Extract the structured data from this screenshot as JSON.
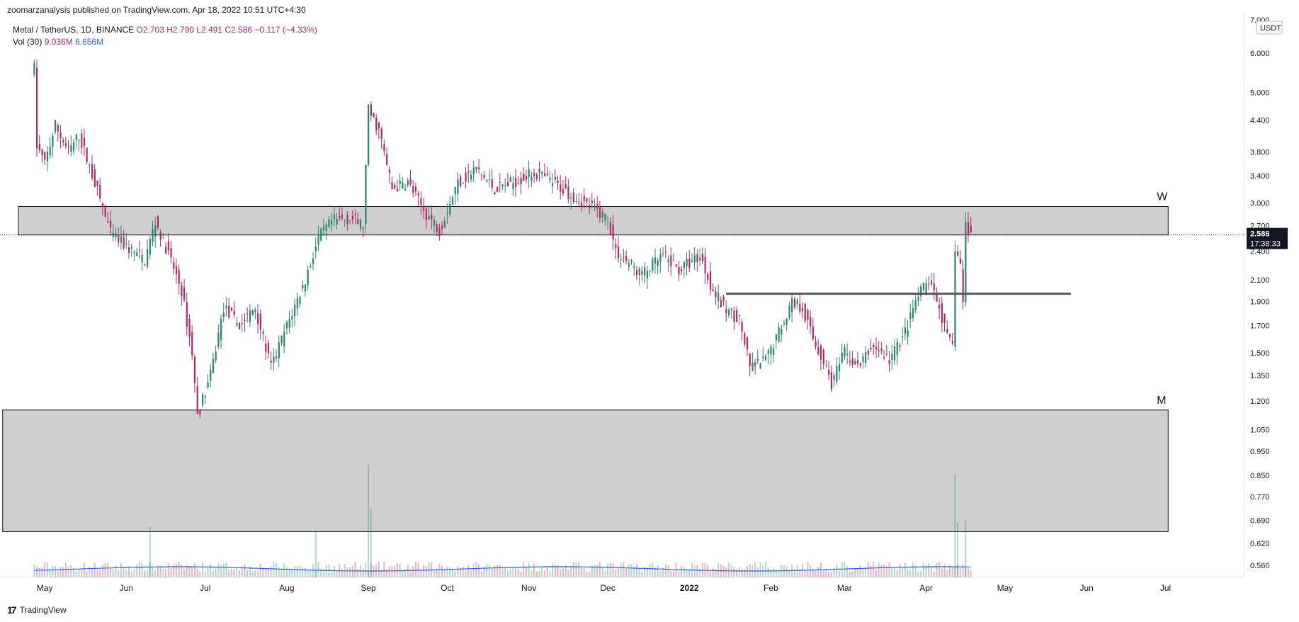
{
  "header": {
    "text": "zoomarzanalysis published on TradingView.com, Apr 18, 2022 10:51 UTC+4:30"
  },
  "legend": {
    "symbol": "Metal / TetherUS, 1D, BINANCE",
    "open": "O2.703",
    "high": "H2.790",
    "low": "L2.491",
    "close": "C2.586",
    "change": "−0.117 (−4.33%)",
    "vol_label": "Vol (30)",
    "vol_value": "9.036M",
    "vol_ma": "6.656M"
  },
  "footer": {
    "logo": "17",
    "brand": "TradingView"
  },
  "colors": {
    "up": "#26866b",
    "down": "#b22865",
    "zone_fill": "#cccccc",
    "vol_ma": "#2962ff",
    "last_price_bg": "#131722"
  },
  "chart_data": {
    "type": "candlestick",
    "currency_label": "USDT",
    "y_scale": "log",
    "ylim": [
      0.53,
      7.0
    ],
    "y_ticks": [
      "7.000",
      "6.000",
      "5.000",
      "4.400",
      "3.800",
      "3.400",
      "3.000",
      "2.700",
      "2.400",
      "2.100",
      "1.900",
      "1.700",
      "1.500",
      "1.350",
      "1.200",
      "1.050",
      "0.950",
      "0.850",
      "0.770",
      "0.690",
      "0.620",
      "0.560"
    ],
    "x_ticks": [
      "May",
      "Jun",
      "Jul",
      "Aug",
      "Sep",
      "Oct",
      "Nov",
      "Dec",
      "2022",
      "Feb",
      "Mar",
      "Apr",
      "May",
      "Jun",
      "Jul"
    ],
    "last_price": {
      "value": "2.586",
      "countdown": "17:38:33"
    },
    "zones": [
      {
        "label": "W",
        "from": 2.586,
        "to": 2.95
      },
      {
        "label": "M",
        "from": 0.655,
        "to": 1.15
      }
    ],
    "support_line": {
      "value": 1.97,
      "from": "2022-01-15",
      "to": "2022-05-26"
    },
    "price_path": [
      [
        "2021-04-27",
        5.6
      ],
      [
        "2021-04-28",
        3.9
      ],
      [
        "2021-05-01",
        3.6
      ],
      [
        "2021-05-05",
        4.3
      ],
      [
        "2021-05-10",
        3.8
      ],
      [
        "2021-05-14",
        4.1
      ],
      [
        "2021-05-20",
        3.3
      ],
      [
        "2021-05-26",
        2.6
      ],
      [
        "2021-06-01",
        2.45
      ],
      [
        "2021-06-08",
        2.3
      ],
      [
        "2021-06-12",
        2.75
      ],
      [
        "2021-06-16",
        2.45
      ],
      [
        "2021-06-22",
        2.0
      ],
      [
        "2021-06-26",
        1.5
      ],
      [
        "2021-06-28",
        1.12
      ],
      [
        "2021-07-03",
        1.35
      ],
      [
        "2021-07-08",
        1.85
      ],
      [
        "2021-07-14",
        1.7
      ],
      [
        "2021-07-20",
        1.85
      ],
      [
        "2021-07-26",
        1.4
      ],
      [
        "2021-08-02",
        1.75
      ],
      [
        "2021-08-08",
        2.1
      ],
      [
        "2021-08-13",
        2.55
      ],
      [
        "2021-08-18",
        2.75
      ],
      [
        "2021-08-25",
        2.8
      ],
      [
        "2021-08-30",
        2.7
      ],
      [
        "2021-09-01",
        4.6
      ],
      [
        "2021-09-05",
        4.2
      ],
      [
        "2021-09-10",
        3.2
      ],
      [
        "2021-09-16",
        3.3
      ],
      [
        "2021-09-22",
        2.9
      ],
      [
        "2021-09-28",
        2.65
      ],
      [
        "2021-10-05",
        3.3
      ],
      [
        "2021-10-12",
        3.5
      ],
      [
        "2021-10-19",
        3.2
      ],
      [
        "2021-10-26",
        3.3
      ],
      [
        "2021-11-03",
        3.45
      ],
      [
        "2021-11-10",
        3.3
      ],
      [
        "2021-11-18",
        3.1
      ],
      [
        "2021-11-24",
        2.95
      ],
      [
        "2021-12-01",
        2.8
      ],
      [
        "2021-12-04",
        2.4
      ],
      [
        "2021-12-08",
        2.3
      ],
      [
        "2021-12-14",
        2.15
      ],
      [
        "2021-12-22",
        2.35
      ],
      [
        "2021-12-28",
        2.2
      ],
      [
        "2022-01-05",
        2.35
      ],
      [
        "2022-01-10",
        2.0
      ],
      [
        "2022-01-14",
        1.85
      ],
      [
        "2022-01-20",
        1.75
      ],
      [
        "2022-01-24",
        1.4
      ],
      [
        "2022-01-30",
        1.45
      ],
      [
        "2022-02-05",
        1.7
      ],
      [
        "2022-02-09",
        1.9
      ],
      [
        "2022-02-13",
        1.85
      ],
      [
        "2022-02-17",
        1.6
      ],
      [
        "2022-02-22",
        1.4
      ],
      [
        "2022-02-24",
        1.3
      ],
      [
        "2022-03-01",
        1.5
      ],
      [
        "2022-03-06",
        1.4
      ],
      [
        "2022-03-12",
        1.55
      ],
      [
        "2022-03-18",
        1.45
      ],
      [
        "2022-03-24",
        1.65
      ],
      [
        "2022-03-29",
        1.95
      ],
      [
        "2022-04-02",
        2.1
      ],
      [
        "2022-04-06",
        1.85
      ],
      [
        "2022-04-09",
        1.6
      ],
      [
        "2022-04-11",
        1.55
      ],
      [
        "2022-04-12",
        2.45
      ],
      [
        "2022-04-14",
        2.25
      ],
      [
        "2022-04-15",
        1.9
      ],
      [
        "2022-04-16",
        2.7
      ],
      [
        "2022-04-18",
        2.586
      ]
    ],
    "volume_spikes": [
      [
        "2021-06-10",
        0.33
      ],
      [
        "2021-08-12",
        0.31
      ],
      [
        "2021-09-01",
        0.74
      ],
      [
        "2021-09-02",
        0.45
      ],
      [
        "2022-04-12",
        0.68
      ],
      [
        "2022-04-13",
        0.36
      ],
      [
        "2022-04-16",
        0.38
      ]
    ]
  }
}
